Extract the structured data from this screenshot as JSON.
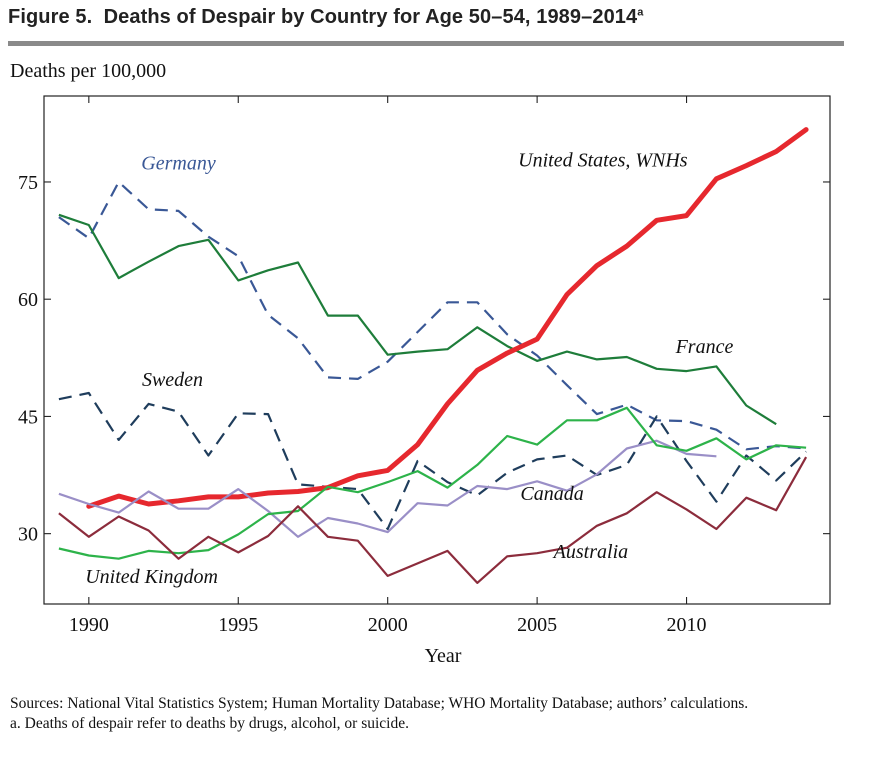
{
  "figure": {
    "label": "Figure 5.",
    "title": "Deaths of Despair by Country for Age 50–54, 1989–2014",
    "title_superscript": "a"
  },
  "chart_data": {
    "type": "line",
    "ylabel": "Deaths per 100,000",
    "xlabel": "Year",
    "xlim": [
      1988.5,
      2014.8
    ],
    "ylim": [
      21,
      86
    ],
    "xticks": [
      1990,
      1995,
      2000,
      2005,
      2010
    ],
    "yticks": [
      30,
      45,
      60,
      75
    ],
    "series": [
      {
        "name": "Germany",
        "color": "#3a5896",
        "dash": "dashed",
        "x": [
          1989,
          1990,
          1991,
          1992,
          1993,
          1994,
          1995,
          1996,
          1997,
          1998,
          1999,
          2000,
          2001,
          2002,
          2003,
          2004,
          2005,
          2006,
          2007,
          2008,
          2009,
          2010,
          2011,
          2012,
          2013,
          2014
        ],
        "y": [
          70.5,
          67.8,
          75,
          71.5,
          71.3,
          68,
          65.5,
          58,
          55,
          50,
          49.8,
          52,
          55.8,
          59.6,
          59.6,
          55.5,
          52.8,
          49,
          45.3,
          46.5,
          44.5,
          44.4,
          43.3,
          40.8,
          41.2,
          40.9
        ]
      },
      {
        "name": "France",
        "color": "#1e7d3a",
        "dash": "solid",
        "x": [
          1989,
          1990,
          1991,
          1992,
          1993,
          1994,
          1995,
          1996,
          1997,
          1998,
          1999,
          2000,
          2001,
          2002,
          2003,
          2004,
          2005,
          2006,
          2007,
          2008,
          2009,
          2010,
          2011,
          2012,
          2013
        ],
        "y": [
          70.8,
          69.5,
          62.7,
          64.8,
          66.8,
          67.6,
          62.4,
          63.7,
          64.7,
          57.9,
          57.9,
          52.9,
          53.3,
          53.6,
          56.4,
          54,
          52.1,
          53.3,
          52.3,
          52.6,
          51.1,
          50.8,
          51.4,
          46.4,
          44
        ]
      },
      {
        "name": "Sweden",
        "color": "#1f3d5c",
        "dash": "dashed",
        "x": [
          1989,
          1990,
          1991,
          1992,
          1993,
          1994,
          1995,
          1996,
          1997,
          1998,
          1999,
          2000,
          2001,
          2002,
          2003,
          2004,
          2005,
          2006,
          2007,
          2008,
          2009,
          2010,
          2011,
          2012,
          2013,
          2014
        ],
        "y": [
          47.2,
          48,
          42,
          46.6,
          45.6,
          40,
          45.4,
          45.3,
          36.3,
          36,
          35.7,
          30.6,
          39.3,
          36.6,
          34.9,
          37.8,
          39.5,
          40,
          37.5,
          38.8,
          45,
          39.3,
          34.1,
          40,
          36.8,
          40.5
        ]
      },
      {
        "name": "United States, WNHs",
        "color": "#e6282e",
        "dash": "solid",
        "width": "thick",
        "x": [
          1990,
          1991,
          1992,
          1993,
          1994,
          1995,
          1996,
          1997,
          1998,
          1999,
          2000,
          2001,
          2002,
          2003,
          2004,
          2005,
          2006,
          2007,
          2008,
          2009,
          2010,
          2011,
          2012,
          2013,
          2014
        ],
        "y": [
          33.5,
          34.8,
          33.8,
          34.2,
          34.7,
          34.7,
          35.2,
          35.4,
          35.9,
          37.4,
          38.1,
          41.4,
          46.6,
          50.9,
          53.1,
          54.9,
          60.6,
          64.3,
          66.8,
          70.1,
          70.7,
          75.4,
          77.1,
          78.9,
          81.7
        ]
      },
      {
        "name": "Canada",
        "color": "#9a8fc7",
        "dash": "solid",
        "x": [
          1989,
          1990,
          1991,
          1992,
          1993,
          1994,
          1995,
          1996,
          1997,
          1998,
          1999,
          2000,
          2001,
          2002,
          2003,
          2004,
          2005,
          2006,
          2007,
          2008,
          2009,
          2010,
          2011
        ],
        "y": [
          35.1,
          33.8,
          32.7,
          35.4,
          33.2,
          33.2,
          35.7,
          32.9,
          29.6,
          32,
          31.3,
          30.2,
          33.9,
          33.6,
          36.1,
          35.7,
          36.7,
          35.5,
          37.6,
          40.9,
          41.9,
          40.2,
          39.9
        ]
      },
      {
        "name": "United Kingdom",
        "color": "#2db34a",
        "dash": "solid",
        "x": [
          1989,
          1990,
          1991,
          1992,
          1993,
          1994,
          1995,
          1996,
          1997,
          1998,
          1999,
          2000,
          2001,
          2002,
          2003,
          2004,
          2005,
          2006,
          2007,
          2008,
          2009,
          2010,
          2011,
          2012,
          2013,
          2014
        ],
        "y": [
          28.1,
          27.2,
          26.8,
          27.8,
          27.5,
          27.9,
          29.9,
          32.5,
          32.9,
          36,
          35.3,
          36.6,
          38,
          35.9,
          38.8,
          42.5,
          41.4,
          44.5,
          44.5,
          46.1,
          41.3,
          40.6,
          42.2,
          39.5,
          41.3,
          41
        ]
      },
      {
        "name": "Australia",
        "color": "#8c2c3c",
        "dash": "solid",
        "x": [
          1989,
          1990,
          1991,
          1992,
          1993,
          1994,
          1995,
          1996,
          1997,
          1998,
          1999,
          2000,
          2001,
          2002,
          2003,
          2004,
          2005,
          2006,
          2007,
          2008,
          2009,
          2010,
          2011,
          2012,
          2013,
          2014
        ],
        "y": [
          32.6,
          29.6,
          32.2,
          30.4,
          26.8,
          29.6,
          27.6,
          29.7,
          33.5,
          29.6,
          29.1,
          24.6,
          26.2,
          27.8,
          23.7,
          27.1,
          27.5,
          28.2,
          31,
          32.6,
          35.3,
          33.1,
          30.6,
          34.6,
          33,
          39.8
        ]
      }
    ],
    "annotations": [
      {
        "text": "Germany",
        "x": 1993,
        "y": 76.6,
        "color": "#3a5896"
      },
      {
        "text": "United States, WNHs",
        "x": 2007.2,
        "y": 77,
        "color": "#111"
      },
      {
        "text": "France",
        "x": 2010.6,
        "y": 53.1,
        "color": "#111"
      },
      {
        "text": "Sweden",
        "x": 1992.8,
        "y": 48.9,
        "color": "#111"
      },
      {
        "text": "Canada",
        "x": 2005.5,
        "y": 34.3,
        "color": "#111"
      },
      {
        "text": "Australia",
        "x": 2006.8,
        "y": 26.9,
        "color": "#111"
      },
      {
        "text": "United Kingdom",
        "x": 1992.1,
        "y": 23.7,
        "color": "#111"
      }
    ]
  },
  "notes": {
    "sources": "Sources: National Vital Statistics System; Human Mortality Database; WHO Mortality Database; authors’ calculations.",
    "footnote": "a. Deaths of despair refer to deaths by drugs, alcohol, or suicide."
  }
}
